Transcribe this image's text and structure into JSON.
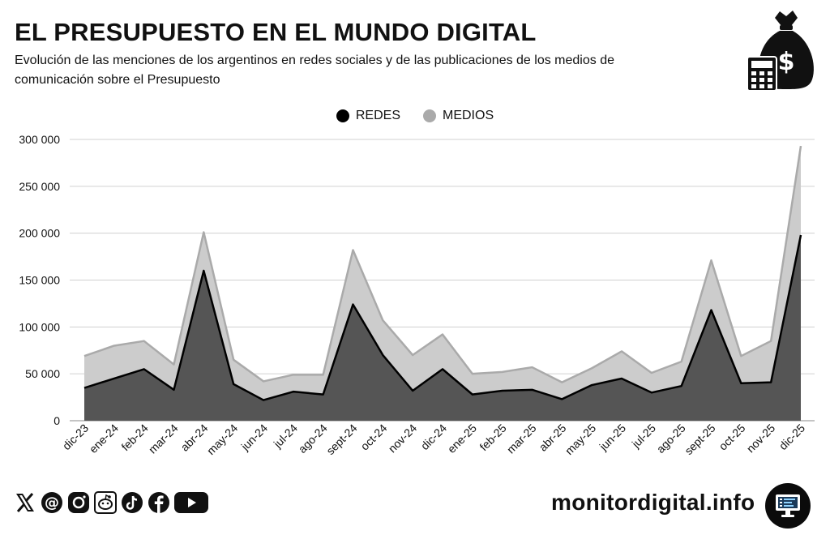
{
  "header": {
    "title": "EL PRESUPUESTO EN EL MUNDO DIGITAL",
    "subtitle": "Evolución de las menciones de los argentinos en redes sociales y de las publicaciones de los medios de comunicación sobre el Presupuesto"
  },
  "icons": {
    "money": "money-bag-calculator-icon",
    "social": [
      "x-icon",
      "threads-icon",
      "instagram-icon",
      "reddit-icon",
      "tiktok-icon",
      "facebook-icon",
      "youtube-icon"
    ],
    "brand": "monitor-icon"
  },
  "footer": {
    "brand": "monitordigital.info"
  },
  "colors": {
    "redes_fill": "#555555",
    "redes_line": "#000000",
    "medios_fill": "#cccccc",
    "medios_line": "#aaaaaa",
    "grid": "#d0d0d0"
  },
  "chart_data": {
    "type": "area",
    "stacked": true,
    "legend_position": "top-center",
    "grid": true,
    "ylim": [
      0,
      300000
    ],
    "yticks": [
      0,
      50000,
      100000,
      150000,
      200000,
      250000,
      300000
    ],
    "ytick_labels": [
      "0",
      "50 000",
      "100 000",
      "150 000",
      "200 000",
      "250 000",
      "300 000"
    ],
    "categories": [
      "dic-23",
      "ene-24",
      "feb-24",
      "mar-24",
      "abr-24",
      "may-24",
      "jun-24",
      "jul-24",
      "ago-24",
      "sept-24",
      "oct-24",
      "nov-24",
      "dic-24",
      "ene-25",
      "feb-25",
      "mar-25",
      "abr-25",
      "may-25",
      "jun-25",
      "jul-25",
      "ago-25",
      "sept-25",
      "oct-25",
      "nov-25",
      "dic-25"
    ],
    "series": [
      {
        "name": "REDES",
        "values": [
          35000,
          45000,
          55000,
          33000,
          160000,
          39000,
          22000,
          31000,
          28000,
          124000,
          70000,
          32000,
          55000,
          28000,
          32000,
          33000,
          23000,
          38000,
          45000,
          30000,
          37000,
          118000,
          40000,
          41000,
          198000
        ]
      },
      {
        "name": "MEDIOS",
        "values": [
          34000,
          35000,
          30000,
          27000,
          41000,
          26000,
          20000,
          18000,
          21000,
          58000,
          37000,
          38000,
          37000,
          22000,
          20000,
          24000,
          18000,
          18000,
          29000,
          21000,
          26000,
          53000,
          29000,
          44000,
          95000
        ]
      }
    ]
  }
}
